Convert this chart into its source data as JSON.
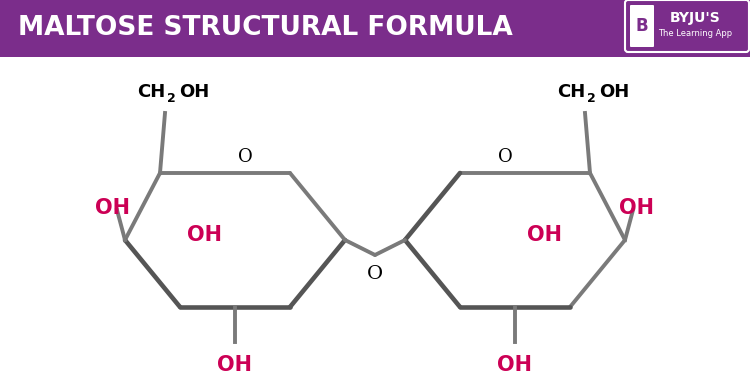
{
  "title": "MALTOSE STRUCTURAL FORMULA",
  "title_bg_color": "#7B2D8B",
  "title_text_color": "#FFFFFF",
  "background_color": "#FFFFFF",
  "ring_color": "#7A7A7A",
  "ring_linewidth": 2.8,
  "oh_color": "#CC0055",
  "o_color": "#000000",
  "ch2oh_color": "#000000",
  "byju_text1": "BYJU'S",
  "byju_text2": "The Learning App"
}
